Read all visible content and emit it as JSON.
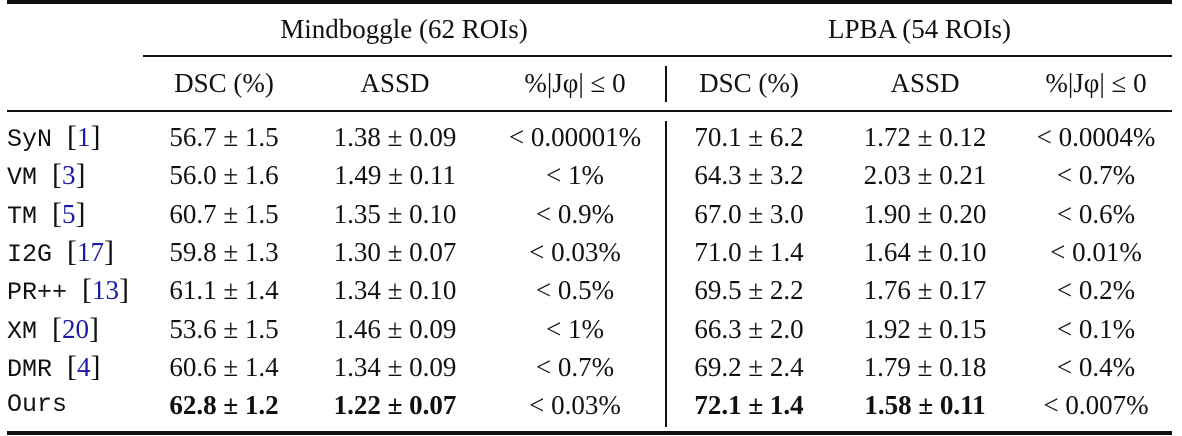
{
  "table": {
    "groups": [
      {
        "label": "Mindboggle (62 ROIs)"
      },
      {
        "label": "LPBA (54 ROIs)"
      }
    ],
    "columns": [
      "DSC (%)",
      "ASSD",
      "%|Jφ| ≤ 0",
      "DSC (%)",
      "ASSD",
      "%|Jφ| ≤ 0"
    ],
    "rows": [
      {
        "method": "SyN",
        "ref": "1",
        "cells": [
          "56.7 ± 1.5",
          "1.38 ± 0.09",
          "< 0.00001%",
          "70.1 ± 6.2",
          "1.72 ± 0.12",
          "< 0.0004%"
        ],
        "bold": [
          false,
          false,
          false,
          false,
          false,
          false
        ]
      },
      {
        "method": "VM",
        "ref": "3",
        "cells": [
          "56.0 ± 1.6",
          "1.49 ± 0.11",
          "< 1%",
          "64.3 ± 3.2",
          "2.03 ± 0.21",
          "< 0.7%"
        ],
        "bold": [
          false,
          false,
          false,
          false,
          false,
          false
        ]
      },
      {
        "method": "TM",
        "ref": "5",
        "cells": [
          "60.7 ± 1.5",
          "1.35 ± 0.10",
          "< 0.9%",
          "67.0 ± 3.0",
          "1.90 ± 0.20",
          "< 0.6%"
        ],
        "bold": [
          false,
          false,
          false,
          false,
          false,
          false
        ]
      },
      {
        "method": "I2G",
        "ref": "17",
        "cells": [
          "59.8 ± 1.3",
          "1.30 ± 0.07",
          "< 0.03%",
          "71.0 ± 1.4",
          "1.64 ± 0.10",
          "< 0.01%"
        ],
        "bold": [
          false,
          false,
          false,
          false,
          false,
          false
        ]
      },
      {
        "method": "PR++",
        "ref": "13",
        "cells": [
          "61.1 ± 1.4",
          "1.34 ± 0.10",
          "< 0.5%",
          "69.5 ± 2.2",
          "1.76 ± 0.17",
          "< 0.2%"
        ],
        "bold": [
          false,
          false,
          false,
          false,
          false,
          false
        ]
      },
      {
        "method": "XM",
        "ref": "20",
        "cells": [
          "53.6 ± 1.5",
          "1.46 ± 0.09",
          "< 1%",
          "66.3 ± 2.0",
          "1.92 ± 0.15",
          "< 0.1%"
        ],
        "bold": [
          false,
          false,
          false,
          false,
          false,
          false
        ]
      },
      {
        "method": "DMR",
        "ref": "4",
        "cells": [
          "60.6 ± 1.4",
          "1.34 ± 0.09",
          "< 0.7%",
          "69.2 ± 2.4",
          "1.79 ± 0.18",
          "< 0.4%"
        ],
        "bold": [
          false,
          false,
          false,
          false,
          false,
          false
        ]
      },
      {
        "method": "Ours",
        "ref": null,
        "cells": [
          "62.8 ± 1.2",
          "1.22 ± 0.07",
          "< 0.03%",
          "72.1 ± 1.4",
          "1.58 ± 0.11",
          "< 0.007%"
        ],
        "bold": [
          true,
          true,
          false,
          true,
          true,
          false
        ]
      }
    ]
  },
  "chart_data": {
    "type": "table",
    "title": "",
    "column_groups": [
      {
        "label": "Mindboggle (62 ROIs)",
        "columns": [
          "DSC (%)",
          "ASSD",
          "%|J_phi| <= 0"
        ]
      },
      {
        "label": "LPBA (54 ROIs)",
        "columns": [
          "DSC (%)",
          "ASSD",
          "%|J_phi| <= 0"
        ]
      }
    ],
    "row_labels": [
      "SyN [1]",
      "VM [3]",
      "TM [5]",
      "I2G [17]",
      "PR++ [13]",
      "XM [20]",
      "DMR [4]",
      "Ours"
    ],
    "series": [
      {
        "name": "Mindboggle DSC mean",
        "values": [
          56.7,
          56.0,
          60.7,
          59.8,
          61.1,
          53.6,
          60.6,
          62.8
        ]
      },
      {
        "name": "Mindboggle DSC std",
        "values": [
          1.5,
          1.6,
          1.5,
          1.3,
          1.4,
          1.5,
          1.4,
          1.2
        ]
      },
      {
        "name": "Mindboggle ASSD mean",
        "values": [
          1.38,
          1.49,
          1.35,
          1.3,
          1.34,
          1.46,
          1.34,
          1.22
        ]
      },
      {
        "name": "Mindboggle ASSD std",
        "values": [
          0.09,
          0.11,
          0.1,
          0.07,
          0.1,
          0.09,
          0.09,
          0.07
        ]
      },
      {
        "name": "Mindboggle %|J|<=0 upper bound (%)",
        "values": [
          1e-05,
          1,
          0.9,
          0.03,
          0.5,
          1,
          0.7,
          0.03
        ]
      },
      {
        "name": "LPBA DSC mean",
        "values": [
          70.1,
          64.3,
          67.0,
          71.0,
          69.5,
          66.3,
          69.2,
          72.1
        ]
      },
      {
        "name": "LPBA DSC std",
        "values": [
          6.2,
          3.2,
          3.0,
          1.4,
          2.2,
          2.0,
          2.4,
          1.4
        ]
      },
      {
        "name": "LPBA ASSD mean",
        "values": [
          1.72,
          2.03,
          1.9,
          1.64,
          1.76,
          1.92,
          1.79,
          1.58
        ]
      },
      {
        "name": "LPBA ASSD std",
        "values": [
          0.12,
          0.21,
          0.2,
          0.1,
          0.17,
          0.15,
          0.18,
          0.11
        ]
      },
      {
        "name": "LPBA %|J|<=0 upper bound (%)",
        "values": [
          0.0004,
          0.7,
          0.6,
          0.01,
          0.2,
          0.1,
          0.4,
          0.007
        ]
      }
    ],
    "highlighted_best": "Ours (bold DSC and ASSD in both datasets)"
  }
}
